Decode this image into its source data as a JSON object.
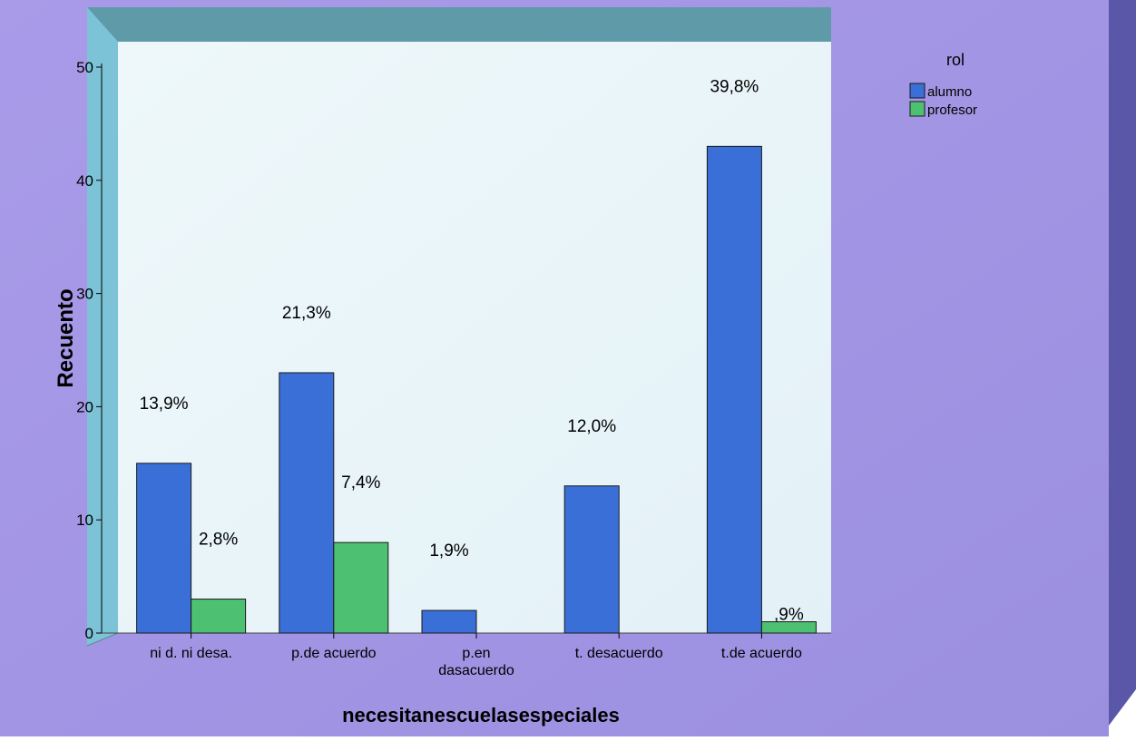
{
  "chart_data": {
    "type": "bar",
    "title": "",
    "xlabel": "necesitanescuelasespeciales",
    "ylabel": "Recuento",
    "ylim": [
      0,
      50
    ],
    "yticks": [
      0,
      10,
      20,
      30,
      40,
      50
    ],
    "grid": false,
    "legend_position": "top-right",
    "legend_title": "rol",
    "categories": [
      [
        "ni d. ni desa."
      ],
      [
        "p.de acuerdo"
      ],
      [
        "p.en",
        "dasacuerdo"
      ],
      [
        "t. desacuerdo"
      ],
      [
        "t.de acuerdo"
      ]
    ],
    "series": [
      {
        "name": "alumno",
        "color": "#3a6fd8",
        "values": [
          15,
          23,
          2,
          13,
          43
        ],
        "labels": [
          "13,9%",
          "21,3%",
          "1,9%",
          "12,0%",
          "39,8%"
        ]
      },
      {
        "name": "profesor",
        "color": "#4dc071",
        "values": [
          3,
          8,
          0,
          0,
          1
        ],
        "labels": [
          "2,8%",
          "7,4%",
          "",
          "",
          ",9%"
        ]
      }
    ]
  }
}
